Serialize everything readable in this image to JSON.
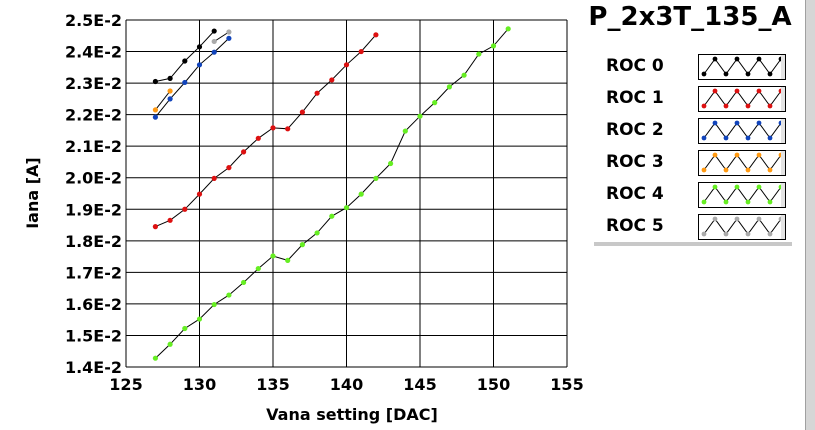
{
  "chart_data": {
    "type": "scatter",
    "title": "P_2x3T_135_A",
    "xlabel": "Vana setting [DAC]",
    "ylabel": "Iana [A]",
    "xlim": [
      125,
      155
    ],
    "ylim": [
      0.014,
      0.025
    ],
    "x_ticks": [
      {
        "v": 125,
        "label": "125"
      },
      {
        "v": 130,
        "label": "130"
      },
      {
        "v": 135,
        "label": "135"
      },
      {
        "v": 140,
        "label": "140"
      },
      {
        "v": 145,
        "label": "145"
      },
      {
        "v": 150,
        "label": "150"
      },
      {
        "v": 155,
        "label": "155"
      }
    ],
    "y_ticks": [
      {
        "v": 0.014,
        "label": "1.4E-2"
      },
      {
        "v": 0.015,
        "label": "1.5E-2"
      },
      {
        "v": 0.016,
        "label": "1.6E-2"
      },
      {
        "v": 0.017,
        "label": "1.7E-2"
      },
      {
        "v": 0.018,
        "label": "1.8E-2"
      },
      {
        "v": 0.019,
        "label": "1.9E-2"
      },
      {
        "v": 0.02,
        "label": "2.0E-2"
      },
      {
        "v": 0.021,
        "label": "2.1E-2"
      },
      {
        "v": 0.022,
        "label": "2.2E-2"
      },
      {
        "v": 0.023,
        "label": "2.3E-2"
      },
      {
        "v": 0.024,
        "label": "2.4E-2"
      },
      {
        "v": 0.025,
        "label": "2.5E-2"
      }
    ],
    "grid": true,
    "legend_position": "right",
    "series": [
      {
        "name": "ROC 0",
        "color": "#000000",
        "x": [
          127,
          128,
          129,
          130,
          131
        ],
        "y": [
          0.02305,
          0.02315,
          0.0237,
          0.02415,
          0.02465
        ]
      },
      {
        "name": "ROC 1",
        "color": "#dd1111",
        "x": [
          127,
          128,
          129,
          130,
          131,
          132,
          133,
          134,
          135,
          136,
          137,
          138,
          139,
          140,
          141,
          142
        ],
        "y": [
          0.01845,
          0.01865,
          0.019,
          0.01948,
          0.01998,
          0.02032,
          0.02082,
          0.02125,
          0.02158,
          0.02155,
          0.02208,
          0.02268,
          0.0231,
          0.02358,
          0.024,
          0.02453
        ]
      },
      {
        "name": "ROC 2",
        "color": "#1144bb",
        "x": [
          127,
          128,
          129,
          130,
          131,
          132
        ],
        "y": [
          0.02192,
          0.0225,
          0.02302,
          0.02358,
          0.02398,
          0.02442
        ]
      },
      {
        "name": "ROC 3",
        "color": "#ff9911",
        "x": [
          127,
          128
        ],
        "y": [
          0.02215,
          0.02275
        ]
      },
      {
        "name": "ROC 4",
        "color": "#66ee22",
        "x": [
          127,
          128,
          129,
          130,
          131,
          132,
          133,
          134,
          135,
          136,
          137,
          138,
          139,
          140,
          141,
          142,
          143,
          144,
          145,
          146,
          147,
          148,
          149,
          150,
          151
        ],
        "y": [
          0.01428,
          0.01472,
          0.01522,
          0.01552,
          0.01598,
          0.01628,
          0.01668,
          0.01712,
          0.01752,
          0.01738,
          0.01788,
          0.01825,
          0.01878,
          0.01905,
          0.01948,
          0.01998,
          0.02045,
          0.02148,
          0.02195,
          0.02238,
          0.02288,
          0.02325,
          0.02392,
          0.02418,
          0.02472
        ]
      },
      {
        "name": "ROC 5",
        "color": "#aaaaaa",
        "x": [
          131,
          132
        ],
        "y": [
          0.02432,
          0.02462
        ]
      }
    ]
  }
}
